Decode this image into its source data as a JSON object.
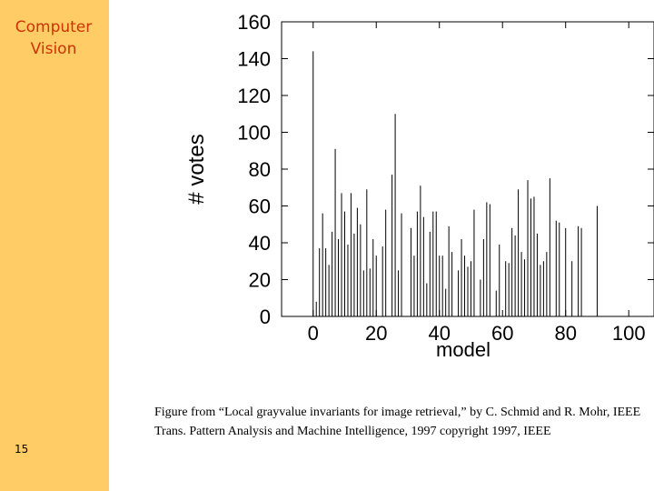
{
  "slide": {
    "sidebar_title": "Computer\nVision",
    "page_number": "15",
    "caption": "Figure from “Local grayvalue invariants for image retrieval,” by C. Schmid and R. Mohr, IEEE Trans. Pattern Analysis and Machine Intelligence, 1997 copyright 1997, IEEE",
    "colors": {
      "sidebar": "#ffcc66",
      "sidebar_title": "#cc3300"
    }
  },
  "chart_data": {
    "type": "bar",
    "title": "",
    "xlabel": "model",
    "ylabel": "# votes",
    "xlim": [
      -10,
      108
    ],
    "ylim": [
      0,
      160
    ],
    "xticks": [
      0,
      20,
      40,
      60,
      80,
      100
    ],
    "yticks": [
      0,
      20,
      40,
      60,
      80,
      100,
      120,
      140,
      160
    ],
    "grid": false,
    "legend": "none",
    "x": [
      0,
      1,
      2,
      3,
      4,
      5,
      6,
      7,
      8,
      9,
      10,
      11,
      12,
      13,
      14,
      15,
      16,
      17,
      18,
      19,
      20,
      21,
      22,
      23,
      24,
      25,
      26,
      27,
      28,
      29,
      30,
      31,
      32,
      33,
      34,
      35,
      36,
      37,
      38,
      39,
      40,
      41,
      42,
      43,
      44,
      45,
      46,
      47,
      48,
      49,
      50,
      51,
      52,
      53,
      54,
      55,
      56,
      57,
      58,
      59,
      60,
      61,
      62,
      63,
      64,
      65,
      66,
      67,
      68,
      69,
      70,
      71,
      72,
      73,
      74,
      75,
      76,
      77,
      78,
      79,
      80,
      81,
      82,
      83,
      84,
      85,
      86,
      87,
      88,
      89,
      90,
      91,
      92,
      93,
      94,
      95,
      96,
      97,
      98,
      99
    ],
    "values": [
      144,
      8,
      37,
      56,
      37,
      28,
      46,
      91,
      42,
      67,
      57,
      39,
      67,
      45,
      59,
      50,
      25,
      69,
      26,
      42,
      33,
      0,
      38,
      58,
      0,
      77,
      110,
      25,
      56,
      0,
      0,
      48,
      33,
      57,
      71,
      54,
      18,
      46,
      57,
      57,
      33,
      33,
      15,
      49,
      35,
      0,
      25,
      42,
      33,
      27,
      30,
      58,
      0,
      20,
      42,
      62,
      61,
      0,
      14,
      39,
      0,
      30,
      29,
      48,
      44,
      69,
      35,
      31,
      74,
      64,
      65,
      45,
      28,
      30,
      35,
      75,
      0,
      52,
      51,
      0,
      48,
      0,
      30,
      0,
      49,
      48,
      0,
      0,
      0,
      0,
      60,
      0,
      0,
      0,
      0,
      0,
      0,
      0,
      0,
      0
    ]
  }
}
